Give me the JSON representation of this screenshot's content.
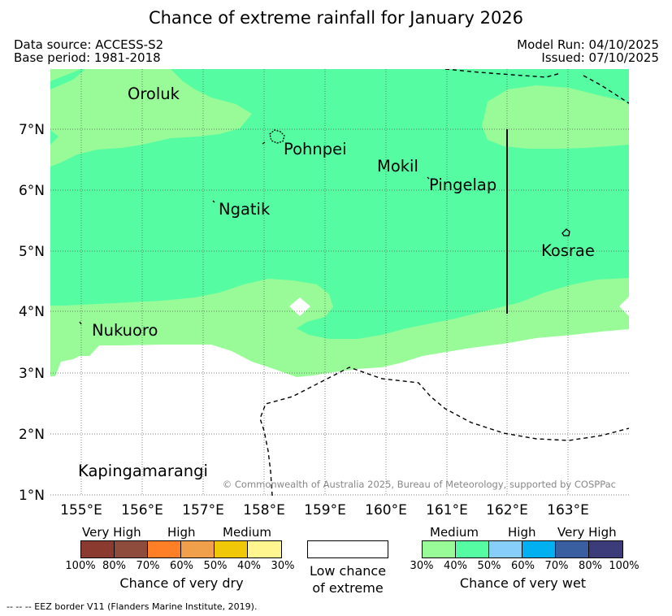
{
  "title": "Chance of extreme rainfall for January 2026",
  "meta": {
    "data_source": "Data source: ACCESS-S2",
    "base_period": "Base period: 1981-2018",
    "model_run": "Model Run: 04/10/2025",
    "issued": "Issued: 07/10/2025"
  },
  "map": {
    "lat_labels": [
      "7°N",
      "6°N",
      "5°N",
      "4°N",
      "3°N",
      "2°N",
      "1°N"
    ],
    "lon_labels": [
      "155°E",
      "156°E",
      "157°E",
      "158°E",
      "159°E",
      "160°E",
      "161°E",
      "162°E",
      "163°E"
    ],
    "places": {
      "oroluk": "Oroluk",
      "pohnpei": "Pohnpei",
      "mokil": "Mokil",
      "pingelap": "Pingelap",
      "ngatik": "Ngatik",
      "kosrae": "Kosrae",
      "nukuoro": "Nukuoro",
      "kapingamarangi": "Kapingamarangi"
    },
    "copyright": "© Commonwealth of Australia 2025, Bureau of Meteorology, supported by COSPPac"
  },
  "legend": {
    "dry": {
      "labels": {
        "very_high": "Very High",
        "high": "High",
        "medium": "Medium"
      },
      "ticks": [
        "100%",
        "80%",
        "70%",
        "60%",
        "50%",
        "40%",
        "30%"
      ],
      "colors": [
        "#8b3a2f",
        "#8e4c3c",
        "#ff7f27",
        "#f0a04b",
        "#f0c808",
        "#fff68f"
      ],
      "caption": "Chance of very dry"
    },
    "low": {
      "line1": "Low chance",
      "line2": "of extreme",
      "color": "#ffffff"
    },
    "wet": {
      "labels": {
        "medium": "Medium",
        "high": "High",
        "very_high": "Very High"
      },
      "ticks": [
        "30%",
        "40%",
        "50%",
        "60%",
        "70%",
        "80%",
        "100%"
      ],
      "colors": [
        "#98fb98",
        "#55fca2",
        "#87cefa",
        "#00b0f0",
        "#3a5fa0",
        "#3c3c7a"
      ],
      "caption": "Chance of very wet"
    }
  },
  "footnote": "-- -- -- EEZ border V11 (Flanders Marine Institute, 2019).",
  "colors": {
    "medium_wet": "#98fb98",
    "medium_high_wet": "#55fca2"
  }
}
